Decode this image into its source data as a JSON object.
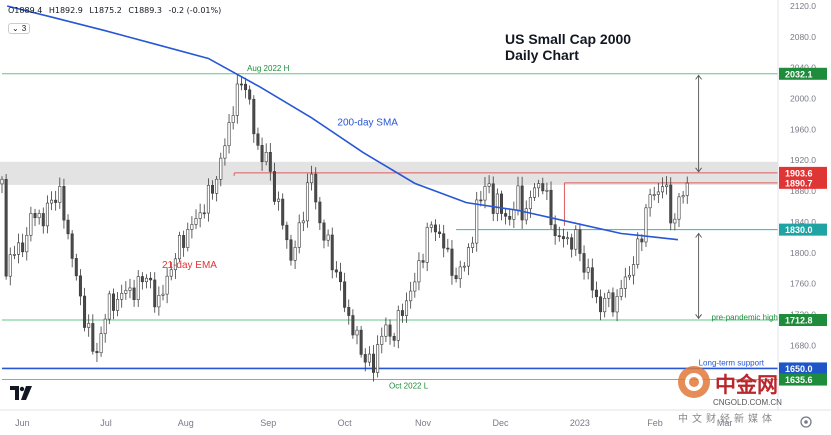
{
  "header": {
    "ohlc": [
      "O1889.4",
      "H1892.9",
      "L1875.2",
      "C1889.3",
      "-0.2 (-0.01%)"
    ],
    "indicator_count": "3"
  },
  "title": {
    "line1": "US Small Cap 2000",
    "line2": "Daily Chart"
  },
  "watermark": {
    "brand": "中金网",
    "site": "CNGOLD.COM.CN",
    "sub": "中文财经新媒体"
  },
  "chart_data": {
    "type": "candlestick",
    "instrument": "US Small Cap 2000",
    "timeframe": "Daily",
    "ylim": [
      1600,
      2120
    ],
    "y_ticks": [
      1640,
      1680,
      1720,
      1760,
      1800,
      1840,
      1880,
      1920,
      1960,
      2000,
      2040,
      2080,
      2120
    ],
    "x_labels": [
      "Jun",
      "Jul",
      "Aug",
      "Sep",
      "Oct",
      "Nov",
      "Dec",
      "2023",
      "Feb",
      "Mar"
    ],
    "grid": false,
    "last": {
      "open": 1889.4,
      "high": 1892.9,
      "low": 1875.2,
      "close": 1889.3,
      "change": "-0.2 (-0.01%)"
    },
    "price_path": [
      {
        "d": 1,
        "c": 1768
      },
      {
        "d": 4,
        "c": 1805
      },
      {
        "d": 7,
        "c": 1800
      },
      {
        "d": 10,
        "c": 1830
      },
      {
        "d": 13,
        "c": 1855
      },
      {
        "d": 16,
        "c": 1840
      },
      {
        "d": 19,
        "c": 1870
      },
      {
        "d": 22,
        "c": 1878
      },
      {
        "d": 25,
        "c": 1835
      },
      {
        "d": 28,
        "c": 1780
      },
      {
        "d": 31,
        "c": 1730
      },
      {
        "d": 34,
        "c": 1690
      },
      {
        "d": 36,
        "c": 1665
      },
      {
        "d": 39,
        "c": 1700
      },
      {
        "d": 42,
        "c": 1745
      },
      {
        "d": 45,
        "c": 1730
      },
      {
        "d": 48,
        "c": 1760
      },
      {
        "d": 51,
        "c": 1740
      },
      {
        "d": 54,
        "c": 1775
      },
      {
        "d": 57,
        "c": 1760
      },
      {
        "d": 60,
        "c": 1735
      },
      {
        "d": 63,
        "c": 1752
      },
      {
        "d": 66,
        "c": 1788
      },
      {
        "d": 69,
        "c": 1810
      },
      {
        "d": 72,
        "c": 1828
      },
      {
        "d": 75,
        "c": 1842
      },
      {
        "d": 78,
        "c": 1858
      },
      {
        "d": 81,
        "c": 1880
      },
      {
        "d": 84,
        "c": 1905
      },
      {
        "d": 86,
        "c": 1935
      },
      {
        "d": 88,
        "c": 1965
      },
      {
        "d": 90,
        "c": 1995
      },
      {
        "d": 92,
        "c": 2015
      },
      {
        "d": 94,
        "c": 2028
      },
      {
        "d": 96,
        "c": 1990
      },
      {
        "d": 98,
        "c": 1950
      },
      {
        "d": 100,
        "c": 1925
      },
      {
        "d": 102,
        "c": 1930
      },
      {
        "d": 104,
        "c": 1900
      },
      {
        "d": 106,
        "c": 1875
      },
      {
        "d": 108,
        "c": 1850
      },
      {
        "d": 110,
        "c": 1820
      },
      {
        "d": 112,
        "c": 1795
      },
      {
        "d": 114,
        "c": 1810
      },
      {
        "d": 116,
        "c": 1840
      },
      {
        "d": 118,
        "c": 1880
      },
      {
        "d": 120,
        "c": 1900
      },
      {
        "d": 122,
        "c": 1860
      },
      {
        "d": 124,
        "c": 1825
      },
      {
        "d": 126,
        "c": 1815
      },
      {
        "d": 128,
        "c": 1790
      },
      {
        "d": 130,
        "c": 1770
      },
      {
        "d": 132,
        "c": 1745
      },
      {
        "d": 134,
        "c": 1720
      },
      {
        "d": 136,
        "c": 1700
      },
      {
        "d": 138,
        "c": 1685
      },
      {
        "d": 140,
        "c": 1668
      },
      {
        "d": 142,
        "c": 1658
      },
      {
        "d": 144,
        "c": 1652
      },
      {
        "d": 146,
        "c": 1685
      },
      {
        "d": 148,
        "c": 1705
      },
      {
        "d": 150,
        "c": 1690
      },
      {
        "d": 152,
        "c": 1698
      },
      {
        "d": 154,
        "c": 1715
      },
      {
        "d": 156,
        "c": 1730
      },
      {
        "d": 158,
        "c": 1750
      },
      {
        "d": 160,
        "c": 1760
      },
      {
        "d": 162,
        "c": 1790
      },
      {
        "d": 164,
        "c": 1810
      },
      {
        "d": 166,
        "c": 1838
      },
      {
        "d": 168,
        "c": 1832
      },
      {
        "d": 170,
        "c": 1820
      },
      {
        "d": 172,
        "c": 1800
      },
      {
        "d": 174,
        "c": 1790
      },
      {
        "d": 176,
        "c": 1760
      },
      {
        "d": 178,
        "c": 1780
      },
      {
        "d": 180,
        "c": 1800
      },
      {
        "d": 182,
        "c": 1805
      },
      {
        "d": 184,
        "c": 1860
      },
      {
        "d": 186,
        "c": 1882
      },
      {
        "d": 188,
        "c": 1890
      },
      {
        "d": 190,
        "c": 1860
      },
      {
        "d": 192,
        "c": 1872
      },
      {
        "d": 194,
        "c": 1848
      },
      {
        "d": 196,
        "c": 1838
      },
      {
        "d": 198,
        "c": 1860
      },
      {
        "d": 200,
        "c": 1872
      },
      {
        "d": 202,
        "c": 1848
      },
      {
        "d": 204,
        "c": 1862
      },
      {
        "d": 206,
        "c": 1882
      },
      {
        "d": 208,
        "c": 1888
      },
      {
        "d": 210,
        "c": 1892
      },
      {
        "d": 212,
        "c": 1850
      },
      {
        "d": 214,
        "c": 1830
      },
      {
        "d": 216,
        "c": 1815
      },
      {
        "d": 218,
        "c": 1822
      },
      {
        "d": 220,
        "c": 1810
      },
      {
        "d": 222,
        "c": 1825
      },
      {
        "d": 224,
        "c": 1798
      },
      {
        "d": 226,
        "c": 1782
      },
      {
        "d": 228,
        "c": 1765
      },
      {
        "d": 230,
        "c": 1740
      },
      {
        "d": 232,
        "c": 1732
      },
      {
        "d": 234,
        "c": 1738
      },
      {
        "d": 236,
        "c": 1742
      },
      {
        "d": 238,
        "c": 1730
      },
      {
        "d": 240,
        "c": 1755
      },
      {
        "d": 242,
        "c": 1770
      },
      {
        "d": 244,
        "c": 1778
      },
      {
        "d": 246,
        "c": 1800
      },
      {
        "d": 248,
        "c": 1828
      },
      {
        "d": 250,
        "c": 1860
      },
      {
        "d": 252,
        "c": 1880
      },
      {
        "d": 254,
        "c": 1875
      },
      {
        "d": 256,
        "c": 1892
      },
      {
        "d": 258,
        "c": 1870
      },
      {
        "d": 260,
        "c": 1835
      },
      {
        "d": 262,
        "c": 1860
      },
      {
        "d": 264,
        "c": 1880
      },
      {
        "d": 266,
        "c": 1889.3
      }
    ],
    "sma200": [
      {
        "d": 2,
        "v": 2120
      },
      {
        "d": 20,
        "v": 2105
      },
      {
        "d": 40,
        "v": 2088
      },
      {
        "d": 60,
        "v": 2070
      },
      {
        "d": 80,
        "v": 2052
      },
      {
        "d": 100,
        "v": 2015
      },
      {
        "d": 120,
        "v": 1975
      },
      {
        "d": 140,
        "v": 1930
      },
      {
        "d": 160,
        "v": 1890
      },
      {
        "d": 180,
        "v": 1865
      },
      {
        "d": 200,
        "v": 1855
      },
      {
        "d": 220,
        "v": 1840
      },
      {
        "d": 240,
        "v": 1825
      },
      {
        "d": 262,
        "v": 1817
      }
    ],
    "levels": [
      {
        "label": "2032.1",
        "value": 2032.1,
        "color": "#1e8c3a",
        "line": "#66c48a",
        "dash": false,
        "from_d": 0,
        "text": "Aug 2022 H",
        "text_d": 95,
        "text_color": "#1e8c3a"
      },
      {
        "label": "1903.6",
        "value": 1903.6,
        "color": "#e03535",
        "line": "#e05a5a",
        "dash": false,
        "from_d": 90
      },
      {
        "label": "1890.7",
        "value": 1890.7,
        "color": "#e03535",
        "line": "#e05a5a",
        "dash": false,
        "from_d": 218
      },
      {
        "label": "1830.0",
        "value": 1830.0,
        "color": "#1fa3a3",
        "line": "#2fb7b7",
        "dash": false,
        "from_d": 176
      },
      {
        "label": "1712.8",
        "value": 1712.8,
        "color": "#1e8c3a",
        "line": "#66c48a",
        "dash": false,
        "from_d": 0,
        "text": "pre-pandemic high",
        "text_d": 275,
        "text_color": "#1e8c3a"
      },
      {
        "label": "1650.0",
        "value": 1650.0,
        "color": "#1e55c7",
        "line": "#2757d6",
        "dash": false,
        "from_d": 0,
        "text": "Long-term support",
        "text_d": 270,
        "text_color": "#2757d6"
      },
      {
        "label": "1635.6",
        "value": 1635.6,
        "color": "#1e8c3a",
        "line": "#66c48a",
        "dash": false,
        "from_d": 0,
        "text": "Oct 2022 L",
        "text_d": 150,
        "text_color": "#1e8c3a"
      }
    ],
    "zone": {
      "from": 1888,
      "to": 1918
    },
    "annotations": [
      {
        "text": "200-day SMA",
        "d": 130,
        "y": 1965,
        "color": "#2757d6"
      },
      {
        "text": "21-day EMA",
        "d": 62,
        "y": 1780,
        "color": "#e03535"
      }
    ],
    "arrows": [
      {
        "d": 270,
        "from": 2030,
        "to": 1905
      },
      {
        "d": 270,
        "from": 1825,
        "to": 1715
      }
    ]
  }
}
